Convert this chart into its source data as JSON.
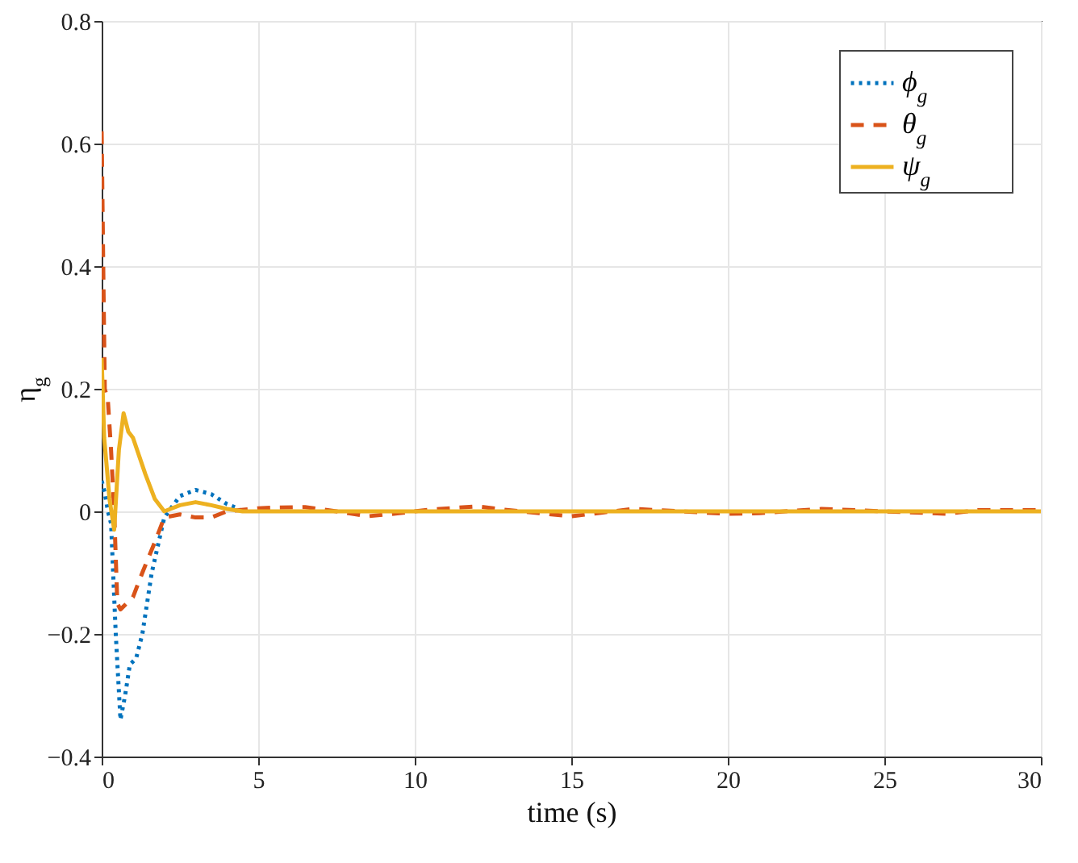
{
  "chart_data": {
    "type": "line",
    "xlabel": "time (s)",
    "ylabel": "η$_{g}$",
    "xlim": [
      0,
      30
    ],
    "xticks": [
      0,
      5,
      10,
      15,
      20,
      25,
      30
    ],
    "ylim": [
      -0.4,
      0.8
    ],
    "yticks": [
      -0.4,
      -0.2,
      0,
      0.2,
      0.4,
      0.6,
      0.8
    ],
    "grid": true,
    "legend": "top right",
    "series": [
      {
        "name": "ϕ$_{g}$",
        "color": "#0072bd",
        "line_style": "dotted",
        "x": [
          0,
          0.1,
          0.2,
          0.3,
          0.45,
          0.6,
          0.75,
          0.9,
          1.1,
          1.3,
          1.6,
          2,
          2.5,
          3,
          3.5,
          4,
          4.4
        ],
        "values": [
          0.05,
          0.03,
          0.0,
          -0.02,
          -0.2,
          -0.34,
          -0.3,
          -0.25,
          -0.24,
          -0.2,
          -0.1,
          -0.01,
          0.025,
          0.035,
          0.028,
          0.012,
          0.004
        ]
      },
      {
        "name": "θ$_{g}$",
        "color": "#d95319",
        "line_style": "dashed",
        "x": [
          0,
          0.05,
          0.1,
          0.2,
          0.3,
          0.4,
          0.5,
          0.6,
          0.8,
          1,
          1.3,
          1.7,
          2,
          2.5,
          3,
          3.5,
          4,
          5,
          5.5,
          6.5,
          7.5,
          8.5,
          9.5,
          10.5,
          12,
          13,
          15,
          16,
          17,
          20,
          21,
          23,
          25,
          27,
          28,
          30
        ],
        "values": [
          0.62,
          0.4,
          0.2,
          0.18,
          0.1,
          0.0,
          -0.15,
          -0.16,
          -0.15,
          -0.14,
          -0.1,
          -0.05,
          -0.01,
          -0.005,
          -0.01,
          -0.01,
          0,
          0.005,
          0.006,
          0.007,
          0,
          -0.008,
          -0.003,
          0.003,
          0.008,
          0.002,
          -0.008,
          -0.002,
          0.004,
          -0.004,
          -0.003,
          0.004,
          0,
          -0.004,
          0.002,
          0.002
        ]
      },
      {
        "name": "ψ$_{g}$",
        "color": "#edb120",
        "line_style": "solid",
        "x": [
          0,
          0.08,
          0.15,
          0.25,
          0.4,
          0.55,
          0.7,
          0.85,
          1,
          1.2,
          1.4,
          1.7,
          2,
          2.5,
          3,
          3.5,
          4,
          4.5,
          5,
          10,
          15,
          20,
          25,
          30
        ],
        "values": [
          0.25,
          0.12,
          0.08,
          0.02,
          -0.03,
          0.1,
          0.16,
          0.13,
          0.12,
          0.09,
          0.06,
          0.02,
          0.0,
          0.01,
          0.015,
          0.01,
          0.004,
          0,
          0,
          0,
          0,
          0,
          0,
          0
        ]
      }
    ]
  }
}
